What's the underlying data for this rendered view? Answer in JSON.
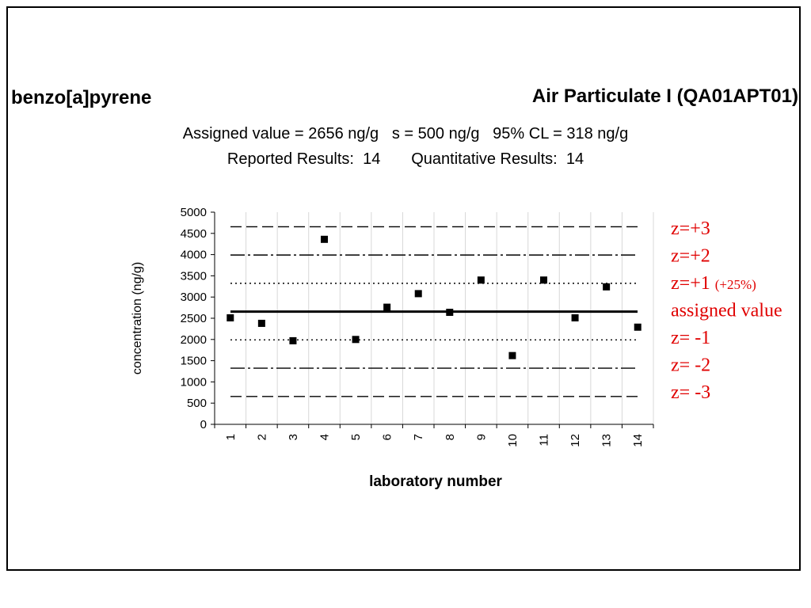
{
  "header": {
    "analyte": "benzo[a]pyrene",
    "material": "Air Particulate I (QA01APT01)",
    "line1": "Assigned value = 2656 ng/g   s = 500 ng/g   95% CL = 318 ng/g",
    "line2": "Reported Results:  14       Quantitative Results:  14"
  },
  "chart_data": {
    "type": "scatter",
    "title": "",
    "xlabel": "laboratory number",
    "ylabel": "concentration (ng/g)",
    "categories": [
      "1",
      "2",
      "3",
      "4",
      "5",
      "6",
      "7",
      "8",
      "9",
      "10",
      "11",
      "12",
      "13",
      "14"
    ],
    "values": [
      2510,
      2380,
      1970,
      4360,
      2000,
      2760,
      3080,
      2640,
      3400,
      1620,
      3400,
      2510,
      3240,
      2290
    ],
    "ylim": [
      0,
      5000
    ],
    "yticks": [
      0,
      500,
      1000,
      1500,
      2000,
      2500,
      3000,
      3500,
      4000,
      4500,
      5000
    ],
    "reference_lines": [
      {
        "label": "z=+3",
        "value": 4656,
        "style": "dashed"
      },
      {
        "label": "z=+2",
        "value": 3990,
        "style": "dashdot"
      },
      {
        "label": "z=+1",
        "note": "(+25%)",
        "value": 3323,
        "style": "dotted"
      },
      {
        "label": "assigned value",
        "value": 2656,
        "style": "solid"
      },
      {
        "label": "z= -1",
        "value": 1990,
        "style": "dotted"
      },
      {
        "label": "z= -2",
        "value": 1323,
        "style": "dashdot"
      },
      {
        "label": "z= -3",
        "value": 656,
        "style": "dashed"
      }
    ],
    "legend_color": "#e00000",
    "marker_color": "#000000",
    "grid": true
  }
}
